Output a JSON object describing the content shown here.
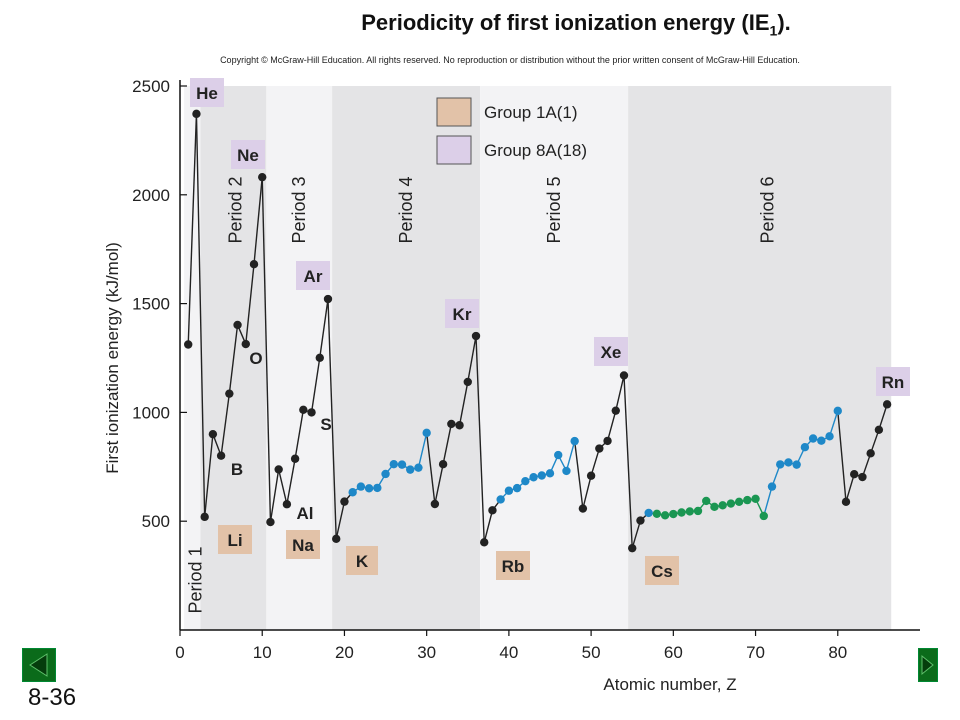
{
  "title": "Periodicity of first ionization energy (IE",
  "title_sub": "1",
  "title_end": ").",
  "copyright": "Copyright © McGraw-Hill Education.  All rights reserved. No reproduction or distribution without the prior written consent of McGraw-Hill Education.",
  "slide_number": "8-36",
  "colors": {
    "group1_box": "#e2c2a8",
    "group18_box": "#dccfe8",
    "band_dark": "#e4e4e6",
    "band_light": "#f3f3f5",
    "transition": "#1e88c8",
    "lanthanide": "#1a9652",
    "main": "#222222",
    "nav_green": "#0b6b1a"
  },
  "chart_data": {
    "type": "line",
    "xlabel": "Atomic number, Z",
    "ylabel": "First ionization energy (kJ/mol)",
    "xlim": [
      0,
      90
    ],
    "ylim": [
      0,
      2500
    ],
    "xticks": [
      "0",
      "10",
      "20",
      "30",
      "40",
      "50",
      "60",
      "70",
      "80"
    ],
    "yticks": [
      "500",
      "1000",
      "1500",
      "2000",
      "2500"
    ],
    "grid": false,
    "periods": [
      {
        "label": "Period 1",
        "from": 0.5,
        "to": 2.5
      },
      {
        "label": "Period 2",
        "from": 2.5,
        "to": 10.5
      },
      {
        "label": "Period 3",
        "from": 10.5,
        "to": 18.5
      },
      {
        "label": "Period 4",
        "from": 18.5,
        "to": 36.5
      },
      {
        "label": "Period 5",
        "from": 36.5,
        "to": 54.5
      },
      {
        "label": "Period 6",
        "from": 54.5,
        "to": 86.5
      }
    ],
    "legend": [
      {
        "label": "Group 1A(1)",
        "color": "#e2c2a8"
      },
      {
        "label": "Group 8A(18)",
        "color": "#dccfe8"
      }
    ],
    "legend_position": "top-center",
    "series": [
      {
        "values": [
          [
            1,
            1312
          ],
          [
            2,
            2372
          ],
          [
            3,
            520
          ],
          [
            4,
            900
          ],
          [
            5,
            801
          ],
          [
            6,
            1086
          ],
          [
            7,
            1402
          ],
          [
            8,
            1314
          ],
          [
            9,
            1681
          ],
          [
            10,
            2081
          ],
          [
            11,
            496
          ],
          [
            12,
            738
          ],
          [
            13,
            578
          ],
          [
            14,
            787
          ],
          [
            15,
            1012
          ],
          [
            16,
            1000
          ],
          [
            17,
            1251
          ],
          [
            18,
            1521
          ],
          [
            19,
            419
          ],
          [
            20,
            590
          ],
          [
            21,
            633
          ],
          [
            22,
            659
          ],
          [
            23,
            651
          ],
          [
            24,
            653
          ],
          [
            25,
            717
          ],
          [
            26,
            762
          ],
          [
            27,
            760
          ],
          [
            28,
            737
          ],
          [
            29,
            746
          ],
          [
            30,
            906
          ],
          [
            31,
            579
          ],
          [
            32,
            762
          ],
          [
            33,
            947
          ],
          [
            34,
            941
          ],
          [
            35,
            1140
          ],
          [
            36,
            1351
          ],
          [
            37,
            403
          ],
          [
            38,
            550
          ],
          [
            39,
            600
          ],
          [
            40,
            640
          ],
          [
            41,
            652
          ],
          [
            42,
            684
          ],
          [
            43,
            702
          ],
          [
            44,
            710
          ],
          [
            45,
            720
          ],
          [
            46,
            804
          ],
          [
            47,
            731
          ],
          [
            48,
            868
          ],
          [
            49,
            558
          ],
          [
            50,
            709
          ],
          [
            51,
            834
          ],
          [
            52,
            869
          ],
          [
            53,
            1008
          ],
          [
            54,
            1170
          ],
          [
            55,
            376
          ],
          [
            56,
            503
          ],
          [
            57,
            538
          ],
          [
            58,
            534
          ],
          [
            59,
            527
          ],
          [
            60,
            533
          ],
          [
            61,
            540
          ],
          [
            62,
            545
          ],
          [
            63,
            547
          ],
          [
            64,
            593
          ],
          [
            65,
            566
          ],
          [
            66,
            573
          ],
          [
            67,
            581
          ],
          [
            68,
            589
          ],
          [
            69,
            597
          ],
          [
            70,
            603
          ],
          [
            71,
            524
          ],
          [
            72,
            659
          ],
          [
            73,
            761
          ],
          [
            74,
            770
          ],
          [
            75,
            760
          ],
          [
            76,
            840
          ],
          [
            77,
            880
          ],
          [
            78,
            870
          ],
          [
            79,
            890
          ],
          [
            80,
            1007
          ],
          [
            81,
            589
          ],
          [
            82,
            716
          ],
          [
            83,
            703
          ],
          [
            84,
            812
          ],
          [
            85,
            920
          ],
          [
            86,
            1037
          ]
        ]
      }
    ],
    "element_labels": [
      {
        "symbol": "He",
        "group": "8A"
      },
      {
        "symbol": "Ne",
        "group": "8A"
      },
      {
        "symbol": "Ar",
        "group": "8A"
      },
      {
        "symbol": "Kr",
        "group": "8A"
      },
      {
        "symbol": "Xe",
        "group": "8A"
      },
      {
        "symbol": "Rn",
        "group": "8A"
      },
      {
        "symbol": "Li",
        "group": "1A"
      },
      {
        "symbol": "Na",
        "group": "1A"
      },
      {
        "symbol": "K",
        "group": "1A"
      },
      {
        "symbol": "Rb",
        "group": "1A"
      },
      {
        "symbol": "Cs",
        "group": "1A"
      }
    ],
    "annotations": [
      "B",
      "O",
      "Al",
      "S"
    ]
  }
}
